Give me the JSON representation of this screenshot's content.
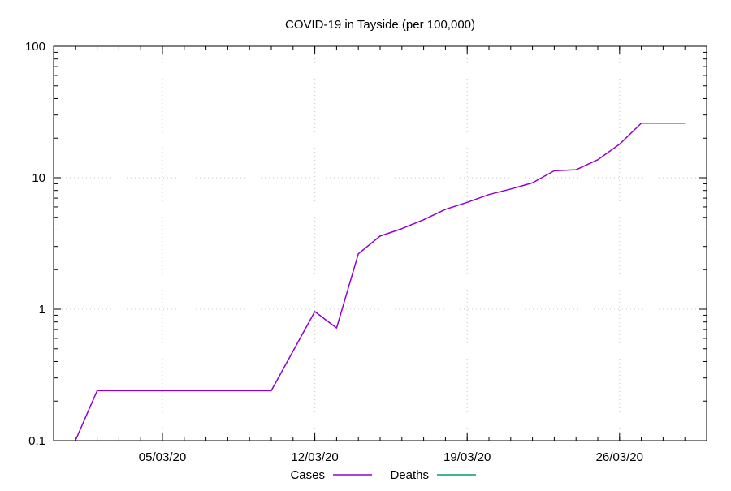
{
  "chart_data": {
    "type": "line",
    "title": "COVID-19 in Tayside (per 100,000)",
    "xlabel": "",
    "ylabel": "",
    "x_tick_labels": [
      "05/03/20",
      "12/03/20",
      "19/03/20",
      "26/03/20"
    ],
    "y_tick_labels": [
      "0.1",
      "1",
      "10",
      "100"
    ],
    "yscale": "log",
    "ylim": [
      0.1,
      100
    ],
    "xlim": [
      "2020-02-29",
      "2020-03-30"
    ],
    "grid": true,
    "legend_position": "bottom-center",
    "series": [
      {
        "name": "Cases",
        "color": "#9400d3",
        "points": [
          [
            "2020-03-01",
            0.1
          ],
          [
            "2020-03-02",
            0.24
          ],
          [
            "2020-03-03",
            0.24
          ],
          [
            "2020-03-04",
            0.24
          ],
          [
            "2020-03-05",
            0.24
          ],
          [
            "2020-03-06",
            0.24
          ],
          [
            "2020-03-07",
            0.24
          ],
          [
            "2020-03-08",
            0.24
          ],
          [
            "2020-03-09",
            0.24
          ],
          [
            "2020-03-10",
            0.24
          ],
          [
            "2020-03-11",
            0.48
          ],
          [
            "2020-03-12",
            0.96
          ],
          [
            "2020-03-13",
            0.72
          ],
          [
            "2020-03-14",
            2.64
          ],
          [
            "2020-03-15",
            3.6
          ],
          [
            "2020-03-16",
            4.1
          ],
          [
            "2020-03-17",
            4.8
          ],
          [
            "2020-03-18",
            5.75
          ],
          [
            "2020-03-19",
            6.5
          ],
          [
            "2020-03-20",
            7.45
          ],
          [
            "2020-03-21",
            8.2
          ],
          [
            "2020-03-22",
            9.15
          ],
          [
            "2020-03-23",
            11.3
          ],
          [
            "2020-03-24",
            11.5
          ],
          [
            "2020-03-25",
            13.7
          ],
          [
            "2020-03-26",
            18.0
          ],
          [
            "2020-03-27",
            26.0
          ],
          [
            "2020-03-28",
            26.0
          ],
          [
            "2020-03-29",
            26.0
          ]
        ]
      },
      {
        "name": "Deaths",
        "color": "#009e73",
        "points": []
      }
    ]
  }
}
